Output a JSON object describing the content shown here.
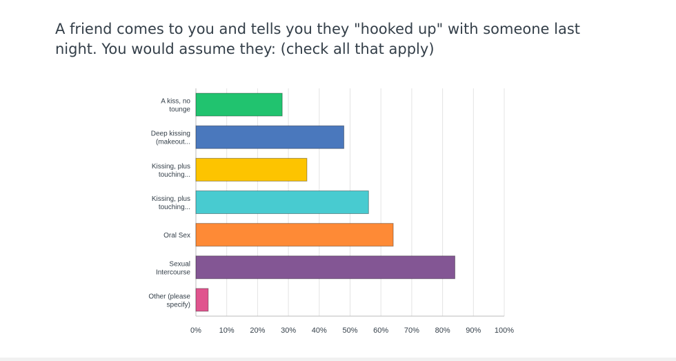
{
  "question": {
    "text": "A friend comes to you and tells you they \"hooked up\" with someone last night. You would assume they: (check all that apply)"
  },
  "chart_data": {
    "type": "bar",
    "orientation": "horizontal",
    "categories": [
      [
        "A kiss, no",
        "tounge"
      ],
      [
        "Deep kissing",
        "(makeout..."
      ],
      [
        "Kissing, plus",
        "touching..."
      ],
      [
        "Kissing, plus",
        "touching..."
      ],
      [
        "Oral Sex"
      ],
      [
        "Sexual",
        "Intercourse"
      ],
      [
        "Other (please",
        "specify)"
      ]
    ],
    "values": [
      28,
      48,
      36,
      56,
      64,
      84,
      4
    ],
    "colors": [
      "#21c36f",
      "#4a78bd",
      "#fdc400",
      "#48cbd0",
      "#fe8a36",
      "#835694",
      "#e0548e"
    ],
    "xlim": [
      0,
      100
    ],
    "xticks": [
      "0%",
      "10%",
      "20%",
      "30%",
      "40%",
      "50%",
      "60%",
      "70%",
      "80%",
      "90%",
      "100%"
    ],
    "grid": true
  }
}
